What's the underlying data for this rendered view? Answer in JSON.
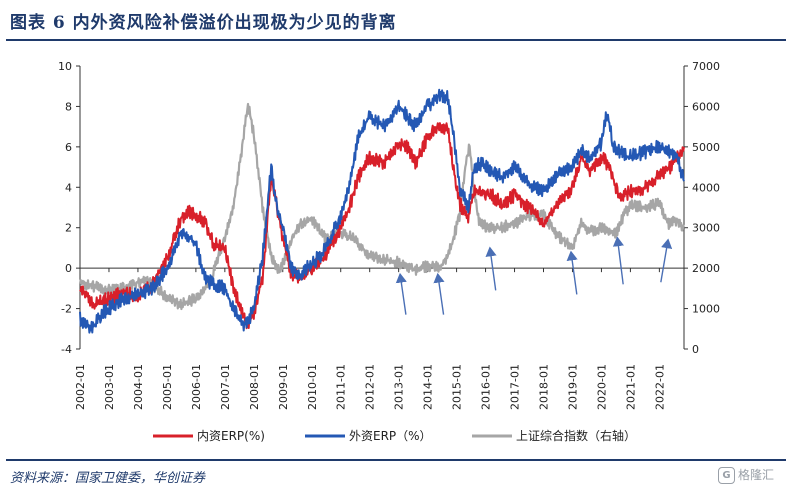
{
  "header": {
    "title": "图表 6    内外资风险补偿溢价出现极为少见的背离"
  },
  "footer": {
    "source": "资料来源：国家卫健委，华创证券",
    "watermark_text": "格隆汇",
    "watermark_icon": "G"
  },
  "colors": {
    "domestic": "#d8202a",
    "foreign": "#2458b4",
    "index": "#a6a6a6",
    "arrow": "#4a6fb5",
    "accent": "#1f3a6b"
  },
  "chart_data": {
    "type": "line",
    "x_tick_labels": [
      "2002-01",
      "2003-01",
      "2004-01",
      "2005-01",
      "2006-01",
      "2007-01",
      "2008-01",
      "2009-01",
      "2010-01",
      "2011-01",
      "2012-01",
      "2013-01",
      "2014-01",
      "2015-01",
      "2016-01",
      "2017-01",
      "2018-01",
      "2019-01",
      "2020-01",
      "2021-01",
      "2022-01"
    ],
    "x_range": [
      2002.0,
      2022.85
    ],
    "y_left_range": [
      -4,
      10
    ],
    "y_left_ticks": [
      "-4",
      "-2",
      "0",
      "2",
      "4",
      "6",
      "8",
      "10"
    ],
    "y_right_range": [
      0,
      7000
    ],
    "y_right_ticks": [
      "0",
      "1000",
      "2000",
      "3000",
      "4000",
      "5000",
      "6000",
      "7000"
    ],
    "legend_position": "bottom",
    "series": [
      {
        "name": "内资ERP(%)",
        "axis": "left",
        "x": [
          2002.0,
          2002.5,
          2003.0,
          2003.5,
          2004.0,
          2004.5,
          2005.0,
          2005.5,
          2005.8,
          2006.0,
          2006.3,
          2006.6,
          2007.0,
          2007.3,
          2007.6,
          2007.8,
          2008.0,
          2008.3,
          2008.6,
          2008.8,
          2009.0,
          2009.3,
          2009.6,
          2010.0,
          2010.4,
          2010.8,
          2011.0,
          2011.3,
          2011.6,
          2012.0,
          2012.5,
          2013.0,
          2013.3,
          2013.6,
          2014.0,
          2014.4,
          2014.7,
          2014.9,
          2015.1,
          2015.4,
          2015.6,
          2015.9,
          2016.2,
          2016.6,
          2017.0,
          2017.5,
          2018.0,
          2018.5,
          2019.0,
          2019.3,
          2019.6,
          2020.0,
          2020.3,
          2020.6,
          2021.0,
          2021.5,
          2022.0,
          2022.4,
          2022.85
        ],
        "y": [
          -1.0,
          -1.8,
          -1.5,
          -1.2,
          -1.4,
          -0.8,
          0.5,
          2.5,
          2.8,
          2.6,
          2.3,
          1.2,
          1.0,
          -1.0,
          -2.2,
          -2.8,
          -2.2,
          -0.5,
          4.5,
          3.0,
          1.5,
          -0.3,
          -0.5,
          0.0,
          0.5,
          1.5,
          2.0,
          3.0,
          4.5,
          5.5,
          5.2,
          6.2,
          6.0,
          5.2,
          6.5,
          7.0,
          6.8,
          5.0,
          3.2,
          2.5,
          3.8,
          3.8,
          3.6,
          3.2,
          3.6,
          3.0,
          2.2,
          3.2,
          4.0,
          5.5,
          4.8,
          5.5,
          5.0,
          3.5,
          3.8,
          4.0,
          4.6,
          5.0,
          6.0
        ]
      },
      {
        "name": "外资ERP（%）",
        "axis": "left",
        "x": [
          2002.0,
          2002.4,
          2002.8,
          2003.0,
          2003.5,
          2004.0,
          2004.5,
          2005.0,
          2005.5,
          2005.8,
          2006.0,
          2006.3,
          2006.6,
          2007.0,
          2007.3,
          2007.6,
          2007.8,
          2008.0,
          2008.3,
          2008.6,
          2008.8,
          2009.0,
          2009.3,
          2009.6,
          2010.0,
          2010.4,
          2010.8,
          2011.0,
          2011.3,
          2011.6,
          2012.0,
          2012.5,
          2013.0,
          2013.3,
          2013.6,
          2014.0,
          2014.4,
          2014.7,
          2014.9,
          2015.1,
          2015.4,
          2015.6,
          2015.9,
          2016.2,
          2016.6,
          2017.0,
          2017.5,
          2018.0,
          2018.5,
          2019.0,
          2019.3,
          2019.6,
          2020.0,
          2020.2,
          2020.4,
          2020.6,
          2020.9,
          2021.2,
          2021.6,
          2022.0,
          2022.3,
          2022.6,
          2022.85
        ],
        "y": [
          -2.5,
          -3.0,
          -2.2,
          -2.0,
          -1.5,
          -1.3,
          -1.0,
          0.0,
          1.8,
          1.5,
          1.2,
          -0.5,
          -0.8,
          -1.0,
          -2.0,
          -2.8,
          -2.6,
          -2.0,
          0.5,
          5.0,
          3.0,
          2.0,
          0.0,
          -0.3,
          0.2,
          0.8,
          2.0,
          2.5,
          4.0,
          6.5,
          7.5,
          7.0,
          8.0,
          7.5,
          7.0,
          8.0,
          8.6,
          8.4,
          6.5,
          4.0,
          3.0,
          5.0,
          5.2,
          4.8,
          4.5,
          5.0,
          4.2,
          3.8,
          4.6,
          5.0,
          5.8,
          5.5,
          6.2,
          7.8,
          6.0,
          5.8,
          5.5,
          5.6,
          5.8,
          6.0,
          5.8,
          5.5,
          4.3
        ]
      },
      {
        "name": "上证综合指数（右轴）",
        "axis": "right",
        "x": [
          2002.0,
          2002.5,
          2003.0,
          2003.5,
          2004.0,
          2004.3,
          2004.8,
          2005.2,
          2005.5,
          2006.0,
          2006.5,
          2007.0,
          2007.3,
          2007.6,
          2007.8,
          2008.0,
          2008.3,
          2008.6,
          2008.9,
          2009.3,
          2009.6,
          2010.0,
          2010.5,
          2011.0,
          2011.5,
          2012.0,
          2012.5,
          2013.0,
          2013.5,
          2014.0,
          2014.5,
          2014.8,
          2015.1,
          2015.3,
          2015.45,
          2015.6,
          2015.8,
          2016.1,
          2016.5,
          2017.0,
          2017.5,
          2018.0,
          2018.5,
          2019.0,
          2019.3,
          2019.6,
          2020.0,
          2020.5,
          2020.8,
          2021.0,
          2021.5,
          2022.0,
          2022.3,
          2022.6,
          2022.85
        ],
        "y": [
          1650,
          1550,
          1450,
          1500,
          1650,
          1700,
          1400,
          1200,
          1100,
          1250,
          1650,
          2750,
          3600,
          5000,
          6050,
          5300,
          3500,
          2300,
          1900,
          2700,
          3100,
          3200,
          2700,
          2900,
          2700,
          2300,
          2200,
          2150,
          1950,
          2050,
          2050,
          2500,
          3300,
          4500,
          5100,
          3900,
          3100,
          3000,
          3000,
          3100,
          3300,
          3300,
          2800,
          2500,
          3100,
          2900,
          3000,
          2850,
          3350,
          3550,
          3500,
          3600,
          3100,
          3200,
          3000
        ]
      }
    ],
    "arrows": [
      {
        "x1": 2013.25,
        "y1": -2.3,
        "x2": 2013.05,
        "y2": -0.3
      },
      {
        "x1": 2014.55,
        "y1": -2.3,
        "x2": 2014.35,
        "y2": -0.3
      },
      {
        "x1": 2016.35,
        "y1": -1.1,
        "x2": 2016.15,
        "y2": 1.0
      },
      {
        "x1": 2019.15,
        "y1": -1.3,
        "x2": 2018.95,
        "y2": 0.8
      },
      {
        "x1": 2020.75,
        "y1": -0.8,
        "x2": 2020.55,
        "y2": 1.5
      },
      {
        "x1": 2022.05,
        "y1": -0.7,
        "x2": 2022.3,
        "y2": 1.4
      }
    ]
  }
}
